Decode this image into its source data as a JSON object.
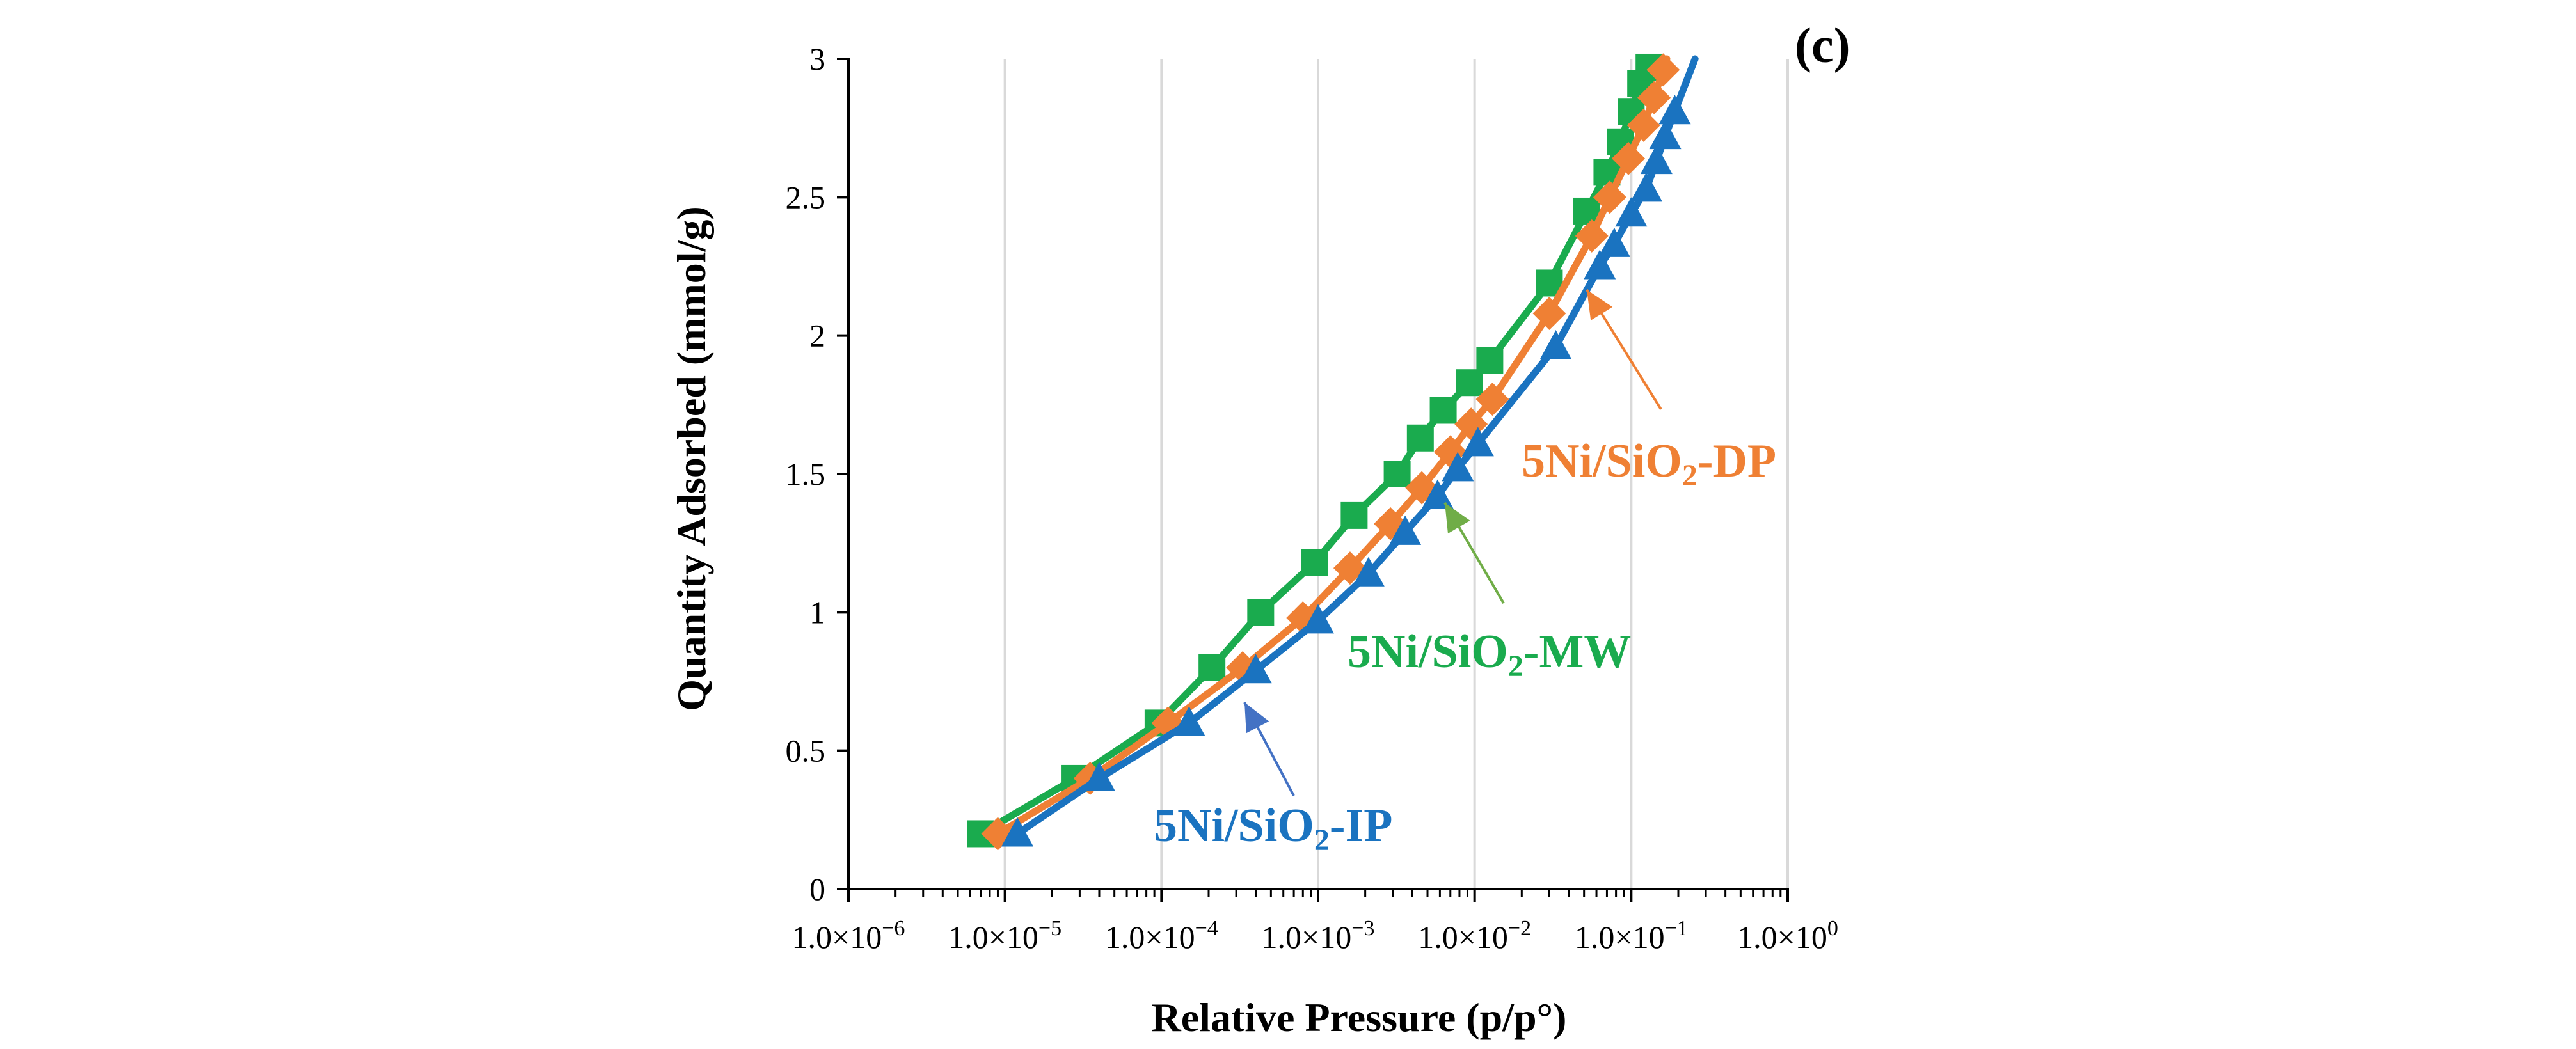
{
  "chart_data": {
    "type": "line",
    "panel_label": "(c)",
    "xlabel": "Relative Pressure (p/p°)",
    "ylabel": "Quantity Adsorbed (mmol/g)",
    "x_scale": "log",
    "xlim": [
      1e-06,
      1
    ],
    "ylim": [
      0,
      3
    ],
    "grid": "vertical",
    "x_ticks": [
      {
        "mantissa": "1.0×10",
        "exp": "−6"
      },
      {
        "mantissa": "1.0×10",
        "exp": "−5"
      },
      {
        "mantissa": "1.0×10",
        "exp": "−4"
      },
      {
        "mantissa": "1.0×10",
        "exp": "−3"
      },
      {
        "mantissa": "1.0×10",
        "exp": "−2"
      },
      {
        "mantissa": "1.0×10",
        "exp": "−1"
      },
      {
        "mantissa": "1.0×10",
        "exp": "0"
      }
    ],
    "y_ticks": [
      "0",
      "0.5",
      "1",
      "1.5",
      "2",
      "2.5",
      "3"
    ],
    "series": [
      {
        "name": "5Ni/SiO2-MW",
        "label_main": "5Ni/SiO",
        "label_sub": "2",
        "label_suffix": "-MW",
        "color": "#1aab4e",
        "marker": "square",
        "x": [
          7e-06,
          2.8e-05,
          9.5e-05,
          0.00021,
          0.00043,
          0.00095,
          0.0017,
          0.0032,
          0.0045,
          0.0063,
          0.0093,
          0.0125,
          0.03,
          0.052,
          0.07,
          0.085,
          0.1,
          0.115,
          0.13
        ],
        "y": [
          0.2,
          0.4,
          0.6,
          0.8,
          1.0,
          1.18,
          1.35,
          1.5,
          1.63,
          1.73,
          1.83,
          1.91,
          2.19,
          2.45,
          2.59,
          2.7,
          2.81,
          2.91,
          2.97
        ]
      },
      {
        "name": "5Ni/SiO2-DP",
        "label_main": "5Ni/SiO",
        "label_sub": "2",
        "label_suffix": "-DP",
        "color": "#ef8034",
        "marker": "diamond",
        "x": [
          9e-06,
          3.5e-05,
          0.00011,
          0.00033,
          0.0008,
          0.0016,
          0.0029,
          0.0046,
          0.007,
          0.0095,
          0.013,
          0.03,
          0.056,
          0.073,
          0.096,
          0.12,
          0.14,
          0.16
        ],
        "y": [
          0.2,
          0.4,
          0.6,
          0.8,
          0.98,
          1.16,
          1.32,
          1.45,
          1.58,
          1.68,
          1.77,
          2.08,
          2.36,
          2.5,
          2.64,
          2.76,
          2.86,
          2.96
        ]
      },
      {
        "name": "5Ni/SiO2-IP",
        "label_main": "5Ni/SiO",
        "label_sub": "2",
        "label_suffix": "-IP",
        "color": "#1a73c0",
        "marker": "triangle",
        "x": [
          1.2e-05,
          4e-05,
          0.00015,
          0.0004,
          0.001,
          0.0021,
          0.0036,
          0.0058,
          0.0078,
          0.0105,
          0.033,
          0.063,
          0.078,
          0.1,
          0.125,
          0.145,
          0.165,
          0.19
        ],
        "y": [
          0.2,
          0.4,
          0.6,
          0.79,
          0.97,
          1.14,
          1.29,
          1.42,
          1.52,
          1.61,
          1.96,
          2.25,
          2.33,
          2.44,
          2.53,
          2.63,
          2.72,
          2.81
        ]
      }
    ]
  }
}
